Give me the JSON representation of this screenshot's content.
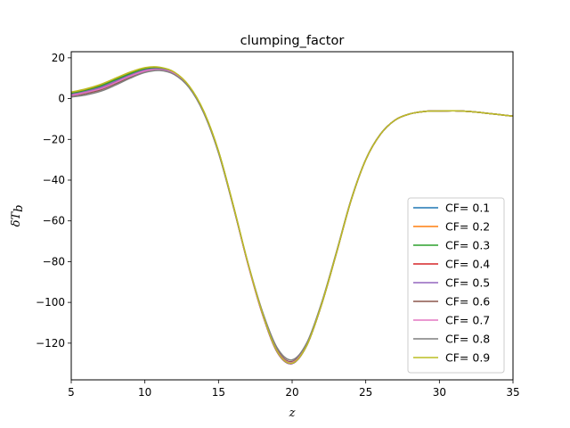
{
  "chart_data": {
    "type": "line",
    "title": "clumping_factor",
    "xlabel": "z",
    "ylabel": "δT_b",
    "xlim": [
      5,
      35
    ],
    "ylim": [
      -138,
      23
    ],
    "xticks": [
      5,
      10,
      15,
      20,
      25,
      30,
      35
    ],
    "yticks": [
      20,
      0,
      -20,
      -40,
      -60,
      -80,
      -100,
      -120
    ],
    "xtick_labels": [
      "5",
      "10",
      "15",
      "20",
      "25",
      "30",
      "35"
    ],
    "ytick_labels": [
      "20",
      "0",
      "−20",
      "−40",
      "−60",
      "−80",
      "−100",
      "−120"
    ],
    "grid": false,
    "legend_position": "lower-right",
    "x": [
      5,
      6,
      7,
      8,
      9,
      10,
      11,
      12,
      13,
      14,
      15,
      16,
      17,
      18,
      19,
      20,
      21,
      22,
      23,
      24,
      25,
      26,
      27,
      28,
      29,
      30,
      31,
      32,
      33,
      34,
      35
    ],
    "series": [
      {
        "name": "CF= 0.1",
        "color": "#1f77b4",
        "values": [
          2.2,
          3.8,
          5.8,
          8.8,
          11.8,
          14.2,
          14.6,
          12.5,
          6.0,
          -6.5,
          -26.0,
          -52.5,
          -81.0,
          -106.0,
          -124.5,
          -130.0,
          -121.0,
          -101.0,
          -76.0,
          -50.0,
          -30.0,
          -17.5,
          -10.5,
          -7.5,
          -6.3,
          -6.1,
          -6.0,
          -6.3,
          -7.0,
          -7.8,
          -8.6
        ]
      },
      {
        "name": "CF= 0.2",
        "color": "#ff7f0e",
        "values": [
          2.8,
          4.3,
          6.5,
          9.5,
          12.5,
          14.8,
          15.0,
          12.8,
          6.2,
          -6.3,
          -25.8,
          -52.3,
          -80.8,
          -105.8,
          -124.3,
          -129.9,
          -121.0,
          -101.0,
          -76.0,
          -50.0,
          -30.0,
          -17.5,
          -10.5,
          -7.5,
          -6.3,
          -6.1,
          -6.0,
          -6.3,
          -7.0,
          -7.8,
          -8.6
        ]
      },
      {
        "name": "CF= 0.3",
        "color": "#2ca02c",
        "values": [
          2.5,
          4.0,
          6.2,
          9.2,
          12.2,
          14.5,
          14.8,
          12.6,
          6.1,
          -6.4,
          -25.9,
          -52.4,
          -80.9,
          -105.9,
          -124.4,
          -129.9,
          -121.0,
          -101.0,
          -76.0,
          -50.0,
          -30.0,
          -17.5,
          -10.5,
          -7.5,
          -6.3,
          -6.1,
          -6.0,
          -6.3,
          -7.0,
          -7.8,
          -8.6
        ]
      },
      {
        "name": "CF= 0.4",
        "color": "#d62728",
        "values": [
          1.8,
          3.3,
          5.3,
          8.3,
          11.3,
          13.8,
          14.4,
          12.3,
          5.8,
          -6.7,
          -26.2,
          -52.7,
          -81.2,
          -106.2,
          -124.6,
          -130.0,
          -121.0,
          -101.0,
          -76.0,
          -50.0,
          -30.0,
          -17.5,
          -10.5,
          -7.5,
          -6.3,
          -6.1,
          -6.0,
          -6.3,
          -7.0,
          -7.8,
          -8.6
        ]
      },
      {
        "name": "CF= 0.5",
        "color": "#9467bd",
        "values": [
          2.0,
          3.5,
          5.5,
          8.5,
          11.5,
          14.0,
          14.5,
          12.4,
          5.9,
          -6.6,
          -26.1,
          -52.6,
          -81.1,
          -106.1,
          -124.5,
          -130.0,
          -121.0,
          -101.0,
          -76.0,
          -50.0,
          -30.0,
          -17.5,
          -10.5,
          -7.5,
          -6.3,
          -6.1,
          -6.0,
          -6.3,
          -7.0,
          -7.8,
          -8.6
        ]
      },
      {
        "name": "CF= 0.6",
        "color": "#8c564b",
        "values": [
          1.2,
          2.5,
          4.3,
          7.3,
          10.5,
          13.2,
          14.0,
          12.0,
          5.6,
          -6.9,
          -26.4,
          -52.8,
          -81.0,
          -105.5,
          -123.5,
          -129.0,
          -120.3,
          -100.5,
          -75.7,
          -49.8,
          -29.9,
          -17.4,
          -10.5,
          -7.5,
          -6.3,
          -6.1,
          -6.0,
          -6.3,
          -7.0,
          -7.8,
          -8.6
        ]
      },
      {
        "name": "CF= 0.7",
        "color": "#e377c2",
        "values": [
          1.5,
          3.0,
          4.8,
          7.8,
          11.0,
          13.5,
          14.2,
          12.2,
          5.7,
          -6.8,
          -26.3,
          -52.8,
          -81.1,
          -105.8,
          -124.0,
          -129.5,
          -120.6,
          -100.7,
          -75.8,
          -49.9,
          -30.0,
          -17.5,
          -10.5,
          -7.5,
          -6.3,
          -6.1,
          -6.0,
          -6.3,
          -7.0,
          -7.8,
          -8.6
        ]
      },
      {
        "name": "CF= 0.8",
        "color": "#7f7f7f",
        "values": [
          0.8,
          1.8,
          3.6,
          6.6,
          10.0,
          12.8,
          13.8,
          11.8,
          5.4,
          -7.1,
          -26.6,
          -52.8,
          -80.6,
          -104.8,
          -122.5,
          -128.2,
          -119.8,
          -100.2,
          -75.5,
          -49.7,
          -29.9,
          -17.4,
          -10.5,
          -7.5,
          -6.3,
          -6.1,
          -6.0,
          -6.3,
          -7.0,
          -7.8,
          -8.6
        ]
      },
      {
        "name": "CF= 0.9",
        "color": "#bcbd22",
        "values": [
          3.2,
          4.8,
          7.0,
          10.0,
          13.0,
          15.2,
          15.4,
          13.0,
          6.3,
          -6.2,
          -25.7,
          -52.3,
          -80.7,
          -105.7,
          -124.2,
          -129.8,
          -121.0,
          -101.0,
          -76.0,
          -50.0,
          -30.0,
          -17.5,
          -10.5,
          -7.5,
          -6.3,
          -6.1,
          -6.0,
          -6.3,
          -7.0,
          -7.8,
          -8.6
        ]
      }
    ]
  }
}
